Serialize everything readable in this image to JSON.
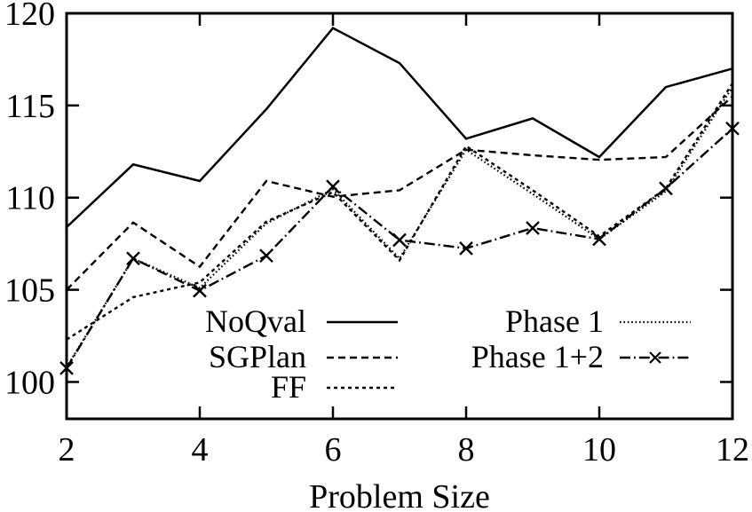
{
  "chart_data": {
    "type": "line",
    "title": "",
    "xlabel": "Problem Size",
    "ylabel": "",
    "x": [
      2,
      3,
      4,
      5,
      6,
      7,
      8,
      9,
      10,
      11,
      12
    ],
    "xlim": [
      2,
      12
    ],
    "ylim": [
      98,
      120
    ],
    "xticks": [
      2,
      4,
      6,
      8,
      10,
      12
    ],
    "xtick_labels": [
      "2",
      "4",
      "6",
      "8",
      "10",
      "12"
    ],
    "yticks": [
      100,
      105,
      110,
      115,
      120
    ],
    "ytick_labels": [
      "100",
      "105",
      "110",
      "115",
      "120"
    ],
    "grid": false,
    "legend_position": "inside-bottom-center",
    "series": [
      {
        "name": "NoQval",
        "style": "solid",
        "marker": "none",
        "values": [
          108.4,
          111.8,
          110.9,
          114.8,
          119.2,
          117.3,
          113.2,
          114.3,
          112.2,
          116.0,
          117.0
        ]
      },
      {
        "name": "SGPlan",
        "style": "dash",
        "marker": "none",
        "values": [
          105.0,
          108.65,
          106.25,
          110.9,
          110.05,
          110.4,
          112.6,
          112.3,
          112.05,
          112.2,
          115.5
        ]
      },
      {
        "name": "FF",
        "style": "short-dash",
        "marker": "none",
        "values": [
          102.3,
          104.6,
          105.4,
          108.7,
          110.3,
          106.6,
          112.8,
          110.4,
          107.9,
          110.5,
          116.2
        ]
      },
      {
        "name": "Phase 1",
        "style": "dot",
        "marker": "none",
        "values": [
          100.8,
          106.7,
          105.1,
          108.6,
          110.45,
          106.7,
          112.6,
          110.2,
          107.75,
          110.35,
          116.0
        ]
      },
      {
        "name": "Phase 1+2",
        "style": "dash-dot",
        "marker": "x",
        "values": [
          100.75,
          106.7,
          104.95,
          106.85,
          110.6,
          107.7,
          107.25,
          108.35,
          107.75,
          110.5,
          113.75
        ]
      }
    ],
    "legend_columns": [
      [
        "NoQval",
        "SGPlan",
        "FF"
      ],
      [
        "Phase 1",
        "Phase 1+2"
      ]
    ]
  },
  "colors": {
    "foreground": "#000000",
    "background": "#ffffff"
  }
}
